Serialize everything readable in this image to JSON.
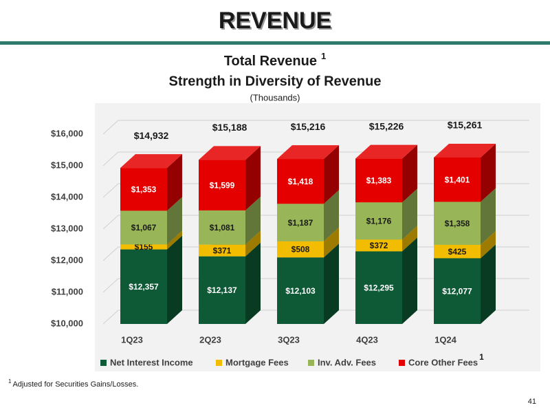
{
  "slide": {
    "header": "REVENUE",
    "footnote": {
      "mark": "1",
      "text": "Adjusted for Securities Gains/Losses."
    },
    "page_number": "41"
  },
  "chart_data": {
    "type": "stacked-bar-3d",
    "title": "Total Revenue",
    "title_mark": "1",
    "subtitle": "Strength in Diversity of Revenue",
    "unit_label": "(Thousands)",
    "categories": [
      "1Q23",
      "2Q23",
      "3Q23",
      "4Q23",
      "1Q24"
    ],
    "series": [
      {
        "name": "Net Interest Income",
        "color": "#0e5a36",
        "label_color": "#ffffff",
        "values": [
          12357,
          12137,
          12103,
          12295,
          12077
        ],
        "value_labels": [
          "$12,357",
          "$12,137",
          "$12,103",
          "$12,295",
          "$12,077"
        ]
      },
      {
        "name": "Mortgage Fees",
        "color": "#f2bd00",
        "label_color": "#1a1a1a",
        "values": [
          155,
          371,
          508,
          372,
          425
        ],
        "value_labels": [
          "$155",
          "$371",
          "$508",
          "$372",
          "$425"
        ]
      },
      {
        "name": "Inv. Adv. Fees",
        "color": "#98b557",
        "label_color": "#1a1a1a",
        "values": [
          1067,
          1081,
          1187,
          1176,
          1358
        ],
        "value_labels": [
          "$1,067",
          "$1,081",
          "$1,187",
          "$1,176",
          "$1,358"
        ]
      },
      {
        "name": "Core Other Fees",
        "color": "#e50000",
        "label_color": "#ffffff",
        "values": [
          1353,
          1599,
          1418,
          1383,
          1401
        ],
        "value_labels": [
          "$1,353",
          "$1,599",
          "$1,418",
          "$1,383",
          "$1,401"
        ]
      }
    ],
    "legend_mark": "1",
    "totals": {
      "values": [
        14932,
        15188,
        15216,
        15226,
        15261
      ],
      "value_labels": [
        "$14,932",
        "$15,188",
        "$15,216",
        "$15,226",
        "$15,261"
      ]
    },
    "ylim": [
      10000,
      16000
    ],
    "yticks": [
      {
        "value": 10000,
        "label": "$10,000"
      },
      {
        "value": 11000,
        "label": "$11,000"
      },
      {
        "value": 12000,
        "label": "$12,000"
      },
      {
        "value": 13000,
        "label": "$13,000"
      },
      {
        "value": 14000,
        "label": "$14,000"
      },
      {
        "value": 15000,
        "label": "$15,000"
      },
      {
        "value": 16000,
        "label": "$16,000"
      }
    ],
    "grid": true,
    "legend": "bottom"
  }
}
